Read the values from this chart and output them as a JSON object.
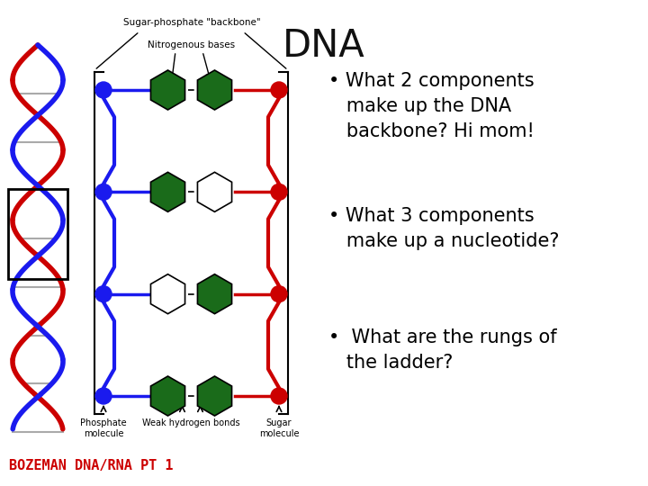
{
  "title": "DNA",
  "title_fontsize": 30,
  "bullet_points": [
    "What 2 components\nmake up the DNA\nbackbone? Hi mom!",
    "What 3 components\nmake up a nucleotide?",
    " What are the rungs of\nthe ladder?"
  ],
  "bullet_fontsize": 15,
  "bullet_color": "#000000",
  "bozeman_text": "BOZEMAN DNA/RNA PT 1",
  "bozeman_color": "#cc0000",
  "bozeman_fontsize": 11,
  "background_color": "#ffffff",
  "blue_strand": "#1a1aee",
  "red_strand": "#cc0000",
  "green_base": "#1a6b1a",
  "white_base": "#ffffff",
  "label_backbone": "Sugar-phosphate \"backbone\"",
  "label_bases": "Nitrogenous bases",
  "label_weak": "Weak hydrogen bonds",
  "label_phosphate": "Phosphate\nmolecule",
  "label_sugar": "Sugar\nmolecule"
}
